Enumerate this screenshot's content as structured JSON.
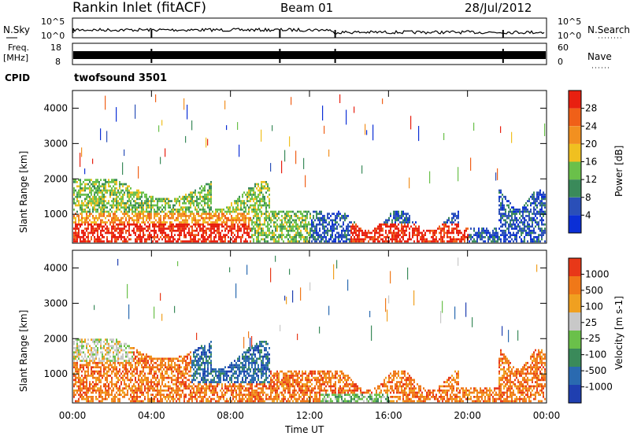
{
  "header": {
    "station": "Rankin Inlet (fitACF)",
    "beam": "Beam 01",
    "date": "28/Jul/2012"
  },
  "status_panels": {
    "nsky_label": "N.Sky",
    "nsky_ticks": [
      "10^5",
      "10^0"
    ],
    "nsearch_label": "N.Search",
    "nsearch_ticks": [
      "10^5",
      "10^0"
    ],
    "freq_label": "Freq.",
    "freq_unit": "[MHz]",
    "freq_ticks": [
      "18",
      "8"
    ],
    "nave_label": "Nave",
    "nave_ticks": [
      "60",
      "0"
    ],
    "cpid_label": "CPID",
    "cpid_value": "twofsound 3501"
  },
  "chart_data": [
    {
      "type": "heatmap",
      "panel": "power",
      "ylabel": "Slant Range [km]",
      "ylim": [
        180,
        4500
      ],
      "yticks": [
        "1000",
        "2000",
        "3000",
        "4000"
      ],
      "xlabel": "",
      "xlim": [
        0,
        24
      ],
      "colorbar_label": "Power [dB]",
      "colorbar_ticks": [
        "28",
        "24",
        "20",
        "16",
        "12",
        "8",
        "4"
      ],
      "colors": [
        "#0b2fd6",
        "#2a4fb8",
        "#3a8a5a",
        "#6ac04a",
        "#f0c020",
        "#f29020",
        "#f06018",
        "#e82010"
      ]
    },
    {
      "type": "heatmap",
      "panel": "velocity",
      "ylabel": "Slant Range [km]",
      "ylim": [
        180,
        4500
      ],
      "yticks": [
        "1000",
        "2000",
        "3000",
        "4000"
      ],
      "xlabel": "Time UT",
      "xlim": [
        0,
        24
      ],
      "xticks": [
        "00:00",
        "04:00",
        "08:00",
        "12:00",
        "16:00",
        "20:00",
        "00:00"
      ],
      "colorbar_label": "Velocity [m s-1]",
      "colorbar_ticks": [
        "1000",
        "500",
        "100",
        "25",
        "-25",
        "-100",
        "-500",
        "-1000"
      ],
      "colors": [
        "#1f3fb0",
        "#2a6ab0",
        "#3a8a5a",
        "#6ac04a",
        "#c8c8c8",
        "#f0a020",
        "#f07818",
        "#e83818"
      ]
    }
  ]
}
